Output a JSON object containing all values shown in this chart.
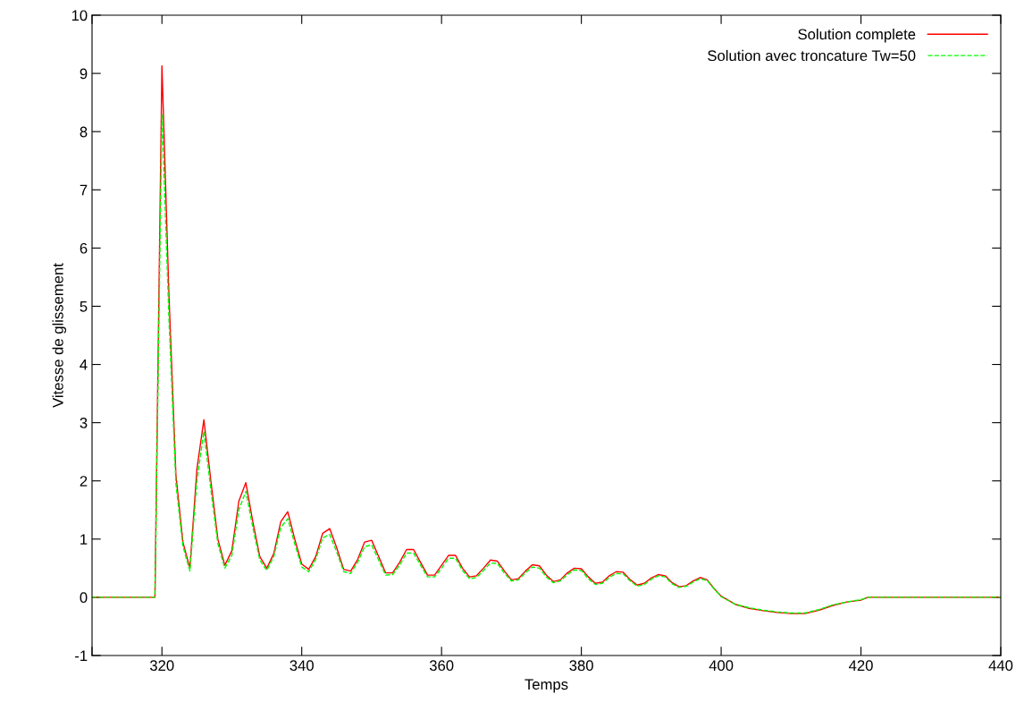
{
  "chart_data": {
    "type": "line",
    "xlabel": "Temps",
    "ylabel": "Vitesse de glissement",
    "xlim": [
      310,
      440
    ],
    "xticks": [
      {
        "value": 310,
        "label": null
      },
      320,
      340,
      360,
      380,
      400,
      420,
      440
    ],
    "ylim": [
      -1,
      10
    ],
    "yticks": [
      -1,
      0,
      1,
      2,
      3,
      4,
      5,
      6,
      7,
      8,
      9,
      10
    ],
    "grid": false,
    "legend": "top right",
    "marker": "none",
    "series": [
      {
        "name": "Solution complete",
        "color": "#ff0000",
        "line_style": "solid",
        "x": [
          310,
          319,
          320,
          321,
          322,
          323,
          324,
          325,
          326,
          327,
          328,
          329,
          330,
          331,
          332,
          333,
          334,
          335,
          336,
          337,
          338,
          339,
          340,
          341,
          342,
          343,
          344,
          345,
          346,
          347,
          348,
          349,
          350,
          351,
          352,
          353,
          354,
          355,
          356,
          357,
          358,
          359,
          360,
          361,
          362,
          363,
          364,
          365,
          366,
          367,
          368,
          369,
          370,
          371,
          372,
          373,
          374,
          375,
          376,
          377,
          378,
          379,
          380,
          381,
          382,
          383,
          384,
          385,
          386,
          387,
          388,
          389,
          390,
          391,
          392,
          393,
          394,
          395,
          396,
          397,
          398,
          399,
          400,
          402,
          404,
          406,
          408,
          410,
          412,
          414,
          416,
          418,
          420,
          421,
          440
        ],
        "values": [
          0,
          0,
          9.13,
          5.2,
          2.1,
          0.95,
          0.5,
          2.2,
          3.05,
          2.0,
          1.0,
          0.55,
          0.8,
          1.65,
          1.97,
          1.3,
          0.7,
          0.5,
          0.75,
          1.3,
          1.47,
          1.0,
          0.57,
          0.48,
          0.7,
          1.1,
          1.18,
          0.85,
          0.48,
          0.45,
          0.65,
          0.95,
          0.98,
          0.7,
          0.42,
          0.42,
          0.6,
          0.82,
          0.82,
          0.6,
          0.38,
          0.38,
          0.55,
          0.72,
          0.72,
          0.5,
          0.35,
          0.37,
          0.5,
          0.64,
          0.62,
          0.45,
          0.3,
          0.32,
          0.45,
          0.56,
          0.54,
          0.38,
          0.27,
          0.3,
          0.42,
          0.5,
          0.49,
          0.35,
          0.24,
          0.26,
          0.37,
          0.44,
          0.43,
          0.3,
          0.21,
          0.24,
          0.33,
          0.39,
          0.37,
          0.25,
          0.18,
          0.2,
          0.28,
          0.34,
          0.3,
          0.15,
          0.02,
          -0.12,
          -0.19,
          -0.23,
          -0.26,
          -0.28,
          -0.28,
          -0.22,
          -0.14,
          -0.08,
          -0.05,
          0,
          0
        ]
      },
      {
        "name": "Solution avec troncature Tw=50",
        "color": "#00ff00",
        "line_style": "dashed",
        "x": [
          310,
          319,
          320,
          321,
          322,
          323,
          324,
          325,
          326,
          327,
          328,
          329,
          330,
          331,
          332,
          333,
          334,
          335,
          336,
          337,
          338,
          339,
          340,
          341,
          342,
          343,
          344,
          345,
          346,
          347,
          348,
          349,
          350,
          351,
          352,
          353,
          354,
          355,
          356,
          357,
          358,
          359,
          360,
          361,
          362,
          363,
          364,
          365,
          366,
          367,
          368,
          369,
          370,
          371,
          372,
          373,
          374,
          375,
          376,
          377,
          378,
          379,
          380,
          381,
          382,
          383,
          384,
          385,
          386,
          387,
          388,
          389,
          390,
          391,
          392,
          393,
          394,
          395,
          396,
          397,
          398,
          399,
          400,
          402,
          404,
          406,
          408,
          410,
          412,
          414,
          416,
          418,
          420,
          421,
          440
        ],
        "values": [
          0,
          0,
          8.3,
          4.8,
          1.95,
          0.88,
          0.45,
          2.0,
          2.85,
          1.85,
          0.92,
          0.5,
          0.72,
          1.5,
          1.82,
          1.2,
          0.64,
          0.46,
          0.7,
          1.2,
          1.35,
          0.92,
          0.52,
          0.44,
          0.65,
          1.02,
          1.08,
          0.78,
          0.44,
          0.41,
          0.6,
          0.87,
          0.9,
          0.64,
          0.38,
          0.39,
          0.55,
          0.76,
          0.76,
          0.55,
          0.35,
          0.35,
          0.5,
          0.67,
          0.67,
          0.46,
          0.32,
          0.34,
          0.46,
          0.59,
          0.58,
          0.41,
          0.28,
          0.3,
          0.42,
          0.52,
          0.5,
          0.35,
          0.25,
          0.28,
          0.39,
          0.47,
          0.46,
          0.32,
          0.22,
          0.24,
          0.34,
          0.41,
          0.4,
          0.28,
          0.19,
          0.22,
          0.31,
          0.37,
          0.35,
          0.23,
          0.17,
          0.19,
          0.26,
          0.32,
          0.29,
          0.14,
          0.01,
          -0.12,
          -0.18,
          -0.22,
          -0.25,
          -0.27,
          -0.27,
          -0.21,
          -0.13,
          -0.08,
          -0.04,
          0,
          0
        ]
      }
    ]
  }
}
